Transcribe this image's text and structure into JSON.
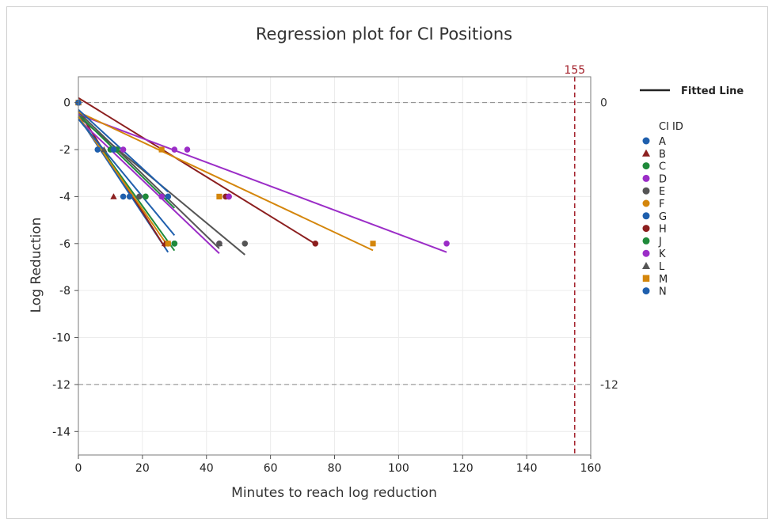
{
  "chart_data": {
    "type": "scatter",
    "title": "Regression plot for CI Positions",
    "xlabel": "Minutes to reach log reduction",
    "ylabel": "Log Reduction",
    "xlim": [
      0,
      160
    ],
    "ylim": [
      -15,
      1.1
    ],
    "xticks": [
      0,
      20,
      40,
      60,
      80,
      100,
      120,
      140,
      160
    ],
    "yticks": [
      0,
      -2,
      -4,
      -6,
      -8,
      -10,
      -12,
      -14
    ],
    "grid": true,
    "legend_position": "right",
    "fitted_line_label": "Fitted Line",
    "legend_title": "CI ID",
    "reference_lines": [
      {
        "axis": "y",
        "value": 0,
        "label": "0",
        "color": "#888888"
      },
      {
        "axis": "y",
        "value": -12,
        "label": "-12",
        "color": "#888888"
      },
      {
        "axis": "x",
        "value": 155,
        "label": "155",
        "color": "#a3202a"
      }
    ],
    "series": [
      {
        "name": "A",
        "color": "#1f5fad",
        "marker": "circle",
        "points": [
          [
            0,
            0
          ],
          [
            6,
            -2
          ],
          [
            14,
            -4
          ],
          [
            28,
            -6
          ]
        ],
        "fit": [
          -0.6,
          -0.206
        ]
      },
      {
        "name": "B",
        "color": "#8c1f1f",
        "marker": "triangle",
        "points": [
          [
            0,
            0
          ],
          [
            11,
            -4
          ],
          [
            27,
            -6
          ],
          [
            12,
            -2
          ]
        ],
        "fit": [
          -0.35,
          -0.215
        ]
      },
      {
        "name": "C",
        "color": "#1f8a3a",
        "marker": "circle",
        "points": [
          [
            0,
            0
          ],
          [
            10,
            -2
          ],
          [
            21,
            -4
          ],
          [
            30,
            -6
          ]
        ],
        "fit": [
          -0.6,
          -0.19
        ]
      },
      {
        "name": "D",
        "color": "#9b2dc7",
        "marker": "circle",
        "points": [
          [
            0,
            0
          ],
          [
            14,
            -2
          ],
          [
            26,
            -4
          ],
          [
            44,
            -6
          ]
        ],
        "fit": [
          -0.7,
          -0.13
        ]
      },
      {
        "name": "E",
        "color": "#555555",
        "marker": "circle",
        "points": [
          [
            0,
            0
          ],
          [
            19,
            -4
          ],
          [
            44,
            -6
          ],
          [
            52,
            -6
          ]
        ],
        "fit": [
          -0.6,
          -0.113
        ]
      },
      {
        "name": "F",
        "color": "#d4860b",
        "marker": "circle",
        "points": [
          [
            0,
            0
          ],
          [
            12,
            -2
          ],
          [
            16,
            -4
          ],
          [
            28,
            -6
          ]
        ],
        "fit": [
          -0.6,
          -0.197
        ]
      },
      {
        "name": "G",
        "color": "#1f5fad",
        "marker": "circle",
        "points": [
          [
            0,
            0
          ],
          [
            16,
            -4
          ],
          [
            28,
            -4
          ],
          [
            30,
            -6
          ]
        ],
        "fit": [
          -0.7,
          -0.165
        ]
      },
      {
        "name": "H",
        "color": "#8c1f1f",
        "marker": "circle",
        "points": [
          [
            0,
            0
          ],
          [
            47,
            -4
          ],
          [
            74,
            -6
          ],
          [
            46,
            -4
          ]
        ],
        "fit": [
          0.2,
          -0.084
        ]
      },
      {
        "name": "J",
        "color": "#1f8a3a",
        "marker": "circle",
        "points": [
          [
            0,
            0
          ],
          [
            12,
            -2
          ],
          [
            21,
            -4
          ],
          [
            30,
            -6
          ]
        ],
        "fit": [
          -0.5,
          -0.133
        ]
      },
      {
        "name": "K",
        "color": "#9b2dc7",
        "marker": "circle",
        "points": [
          [
            0,
            0
          ],
          [
            30,
            -2
          ],
          [
            34,
            -2
          ],
          [
            47,
            -4
          ],
          [
            115,
            -6
          ]
        ],
        "fit": [
          -0.5,
          -0.051
        ]
      },
      {
        "name": "L",
        "color": "#555555",
        "marker": "triangle",
        "points": [
          [
            0,
            0
          ],
          [
            8,
            -2
          ],
          [
            44,
            -6
          ]
        ],
        "fit": [
          -0.4,
          -0.132
        ]
      },
      {
        "name": "M",
        "color": "#d4860b",
        "marker": "square",
        "points": [
          [
            0,
            0
          ],
          [
            26,
            -2
          ],
          [
            44,
            -4
          ],
          [
            92,
            -6
          ],
          [
            28,
            -6
          ]
        ],
        "fit": [
          -0.4,
          -0.064
        ]
      },
      {
        "name": "N",
        "color": "#1f5fad",
        "marker": "circle",
        "points": [
          [
            0,
            0
          ],
          [
            11,
            -2
          ],
          [
            28,
            -4
          ]
        ],
        "fit": [
          -0.3,
          -0.125
        ]
      }
    ]
  }
}
